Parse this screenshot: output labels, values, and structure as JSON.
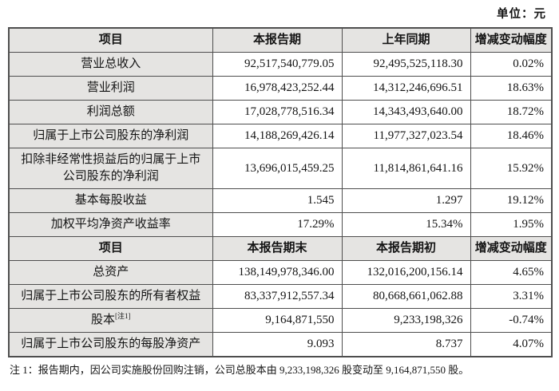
{
  "unit_label": "单位：元",
  "section1": {
    "headers": {
      "item": "项目",
      "current": "本报告期",
      "prior": "上年同期",
      "change": "增减变动幅度"
    },
    "rows": [
      {
        "label": "营业总收入",
        "current": "92,517,540,779.05",
        "prior": "92,495,525,118.30",
        "change": "0.02%"
      },
      {
        "label": "营业利润",
        "current": "16,978,423,252.44",
        "prior": "14,312,246,696.51",
        "change": "18.63%"
      },
      {
        "label": "利润总额",
        "current": "17,028,778,516.34",
        "prior": "14,343,493,640.00",
        "change": "18.72%"
      },
      {
        "label": "归属于上市公司股东的净利润",
        "current": "14,188,269,426.14",
        "prior": "11,977,327,023.54",
        "change": "18.46%"
      },
      {
        "label": "扣除非经常性损益后的归属于上市公司股东的净利润",
        "current": "13,696,015,459.25",
        "prior": "11,814,861,641.16",
        "change": "15.92%"
      },
      {
        "label": "基本每股收益",
        "current": "1.545",
        "prior": "1.297",
        "change": "19.12%"
      },
      {
        "label": "加权平均净资产收益率",
        "current": "17.29%",
        "prior": "15.34%",
        "change": "1.95%"
      }
    ]
  },
  "section2": {
    "headers": {
      "item": "项目",
      "current": "本报告期末",
      "prior": "本报告期初",
      "change": "增减变动幅度"
    },
    "rows": [
      {
        "label": "总资产",
        "current": "138,149,978,346.00",
        "prior": "132,016,200,156.14",
        "change": "4.65%"
      },
      {
        "label": "归属于上市公司股东的所有者权益",
        "current": "83,337,912,557.34",
        "prior": "80,668,661,062.88",
        "change": "3.31%"
      },
      {
        "label": "股本",
        "note": "[注1]",
        "current": "9,164,871,550",
        "prior": "9,233,198,326",
        "change": "-0.74%"
      },
      {
        "label": "归属于上市公司股东的每股净资产",
        "current": "9.093",
        "prior": "8.737",
        "change": "4.07%"
      }
    ]
  },
  "footnote": "注 1：报告期内，因公司实施股份回购注销，公司总股本由 9,233,198,326 股变动至 9,164,871,550 股。",
  "colors": {
    "cell_fill": "#e5e4e2",
    "border": "#4e4e4e",
    "text": "#141414",
    "background": "#ffffff"
  }
}
